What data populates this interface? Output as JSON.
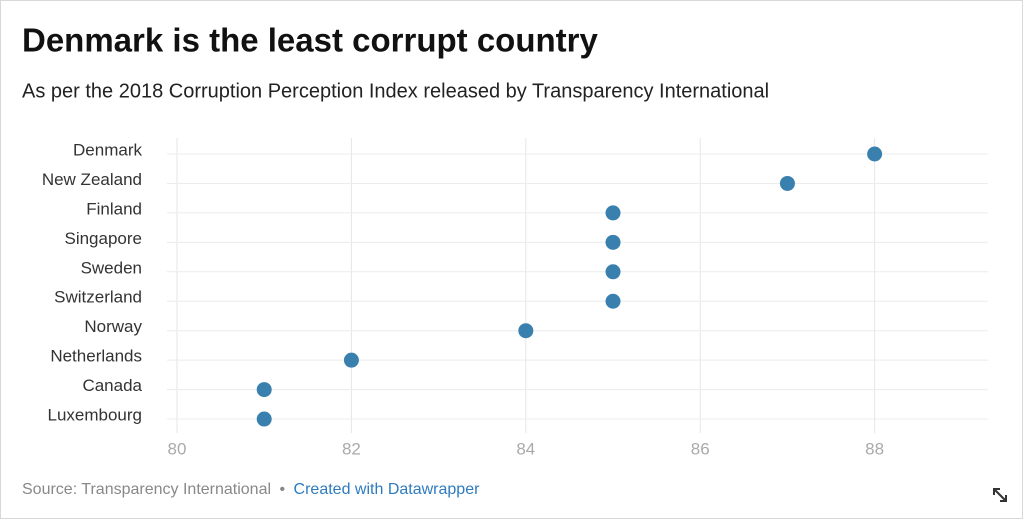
{
  "chart_data": {
    "type": "dot",
    "title": "Denmark is the least corrupt country",
    "subtitle": "As per the 2018 Corruption Perception Index released by Transparency International",
    "categories": [
      "Denmark",
      "New Zealand",
      "Finland",
      "Singapore",
      "Sweden",
      "Switzerland",
      "Norway",
      "Netherlands",
      "Canada",
      "Luxembourg"
    ],
    "values": [
      88,
      87,
      85,
      85,
      85,
      85,
      84,
      82,
      81,
      81
    ],
    "color": "#3a80ae",
    "xlim": [
      80,
      89.3
    ],
    "xticks": [
      80,
      82,
      84,
      86,
      88
    ],
    "grid": true,
    "source": "Source: Transparency International",
    "separator": "•",
    "credit": "Created with Datawrapper"
  }
}
